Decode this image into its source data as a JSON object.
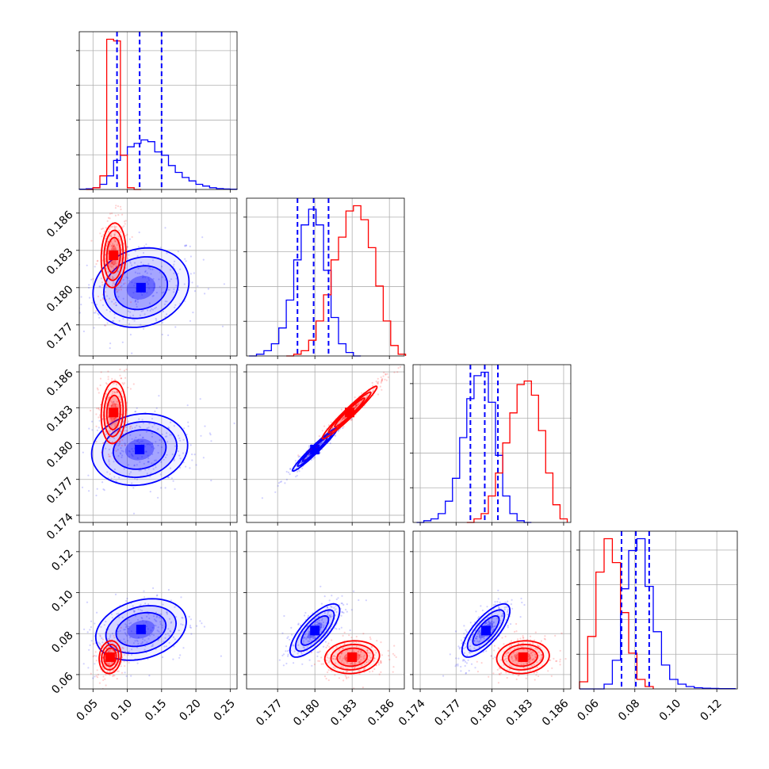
{
  "chart_data": {
    "type": "corner",
    "grid": true,
    "series": [
      {
        "color": "#0000ff"
      },
      {
        "color": "#ff0000"
      }
    ],
    "params": [
      {
        "range": [
          0.03,
          0.26
        ],
        "ticks": [
          "0.05",
          "0.10",
          "0.15",
          "0.20",
          "0.25"
        ],
        "quantiles": [
          0.085,
          0.118,
          0.15
        ],
        "hist": {
          "blue": {
            "x": [
              0.035,
              0.045,
              0.055,
              0.065,
              0.075,
              0.085,
              0.095,
              0.105,
              0.115,
              0.125,
              0.135,
              0.145,
              0.155,
              0.165,
              0.175,
              0.185,
              0.195,
              0.205,
              0.215,
              0.225,
              0.235,
              0.245,
              0.255
            ],
            "y": [
              0.2,
              0.4,
              1,
              3,
              8,
              17,
              20,
              25,
              27,
              29,
              28,
              22,
              20,
              14,
              10,
              7,
              5,
              3,
              2,
              1,
              0.5,
              0.3,
              0.2
            ]
          },
          "red": {
            "x": [
              0.045,
              0.055,
              0.065,
              0.075,
              0.085,
              0.095,
              0.105,
              0.115
            ],
            "y": [
              0,
              1,
              8,
              88,
              87,
              20,
              1,
              0
            ]
          }
        }
      },
      {
        "range": [
          0.1745,
          0.1872
        ],
        "ticks": [
          "0.177",
          "0.180",
          "0.183",
          "0.186"
        ],
        "quantiles": [
          0.1786,
          0.1799,
          0.1811
        ],
        "hist": {
          "blue": {
            "x": [
              0.175,
              0.1756,
              0.1762,
              0.1768,
              0.1774,
              0.178,
              0.1786,
              0.1792,
              0.1798,
              0.1804,
              0.181,
              0.1816,
              0.1822,
              0.1828,
              0.1834
            ],
            "y": [
              0,
              1,
              3,
              7,
              16,
              32,
              55,
              75,
              84,
              75,
              49,
              22,
              7,
              2,
              0
            ]
          },
          "red": {
            "x": [
              0.178,
              0.1786,
              0.1792,
              0.1798,
              0.1804,
              0.181,
              0.1816,
              0.1822,
              0.1828,
              0.1834,
              0.184,
              0.1846,
              0.1852,
              0.1858,
              0.1864,
              0.187
            ],
            "y": [
              0,
              1,
              3,
              9,
              20,
              35,
              55,
              68,
              83,
              86,
              78,
              62,
              40,
              20,
              6,
              1
            ]
          }
        }
      },
      {
        "range": [
          0.1734,
          0.1866
        ],
        "ticks": [
          "0.174",
          "0.177",
          "0.180",
          "0.183",
          "0.186"
        ],
        "quantiles": [
          0.1782,
          0.1794,
          0.1805
        ],
        "hist": {
          "blue": {
            "x": [
              0.174,
              0.1746,
              0.1752,
              0.1758,
              0.1764,
              0.177,
              0.1776,
              0.1782,
              0.1788,
              0.1794,
              0.18,
              0.1806,
              0.1812,
              0.1818,
              0.1824,
              0.183
            ],
            "y": [
              0,
              1,
              2,
              5,
              12,
              25,
              48,
              70,
              83,
              85,
              68,
              38,
              15,
              5,
              1,
              0
            ]
          },
          "red": {
            "x": [
              0.1782,
              0.1788,
              0.1794,
              0.18,
              0.1806,
              0.1812,
              0.1818,
              0.1824,
              0.183,
              0.1836,
              0.1842,
              0.1848,
              0.1854,
              0.186
            ],
            "y": [
              0,
              2,
              5,
              15,
              28,
              45,
              62,
              78,
              80,
              72,
              52,
              28,
              10,
              2
            ]
          }
        }
      },
      {
        "range": [
          0.053,
          0.13
        ],
        "ticks": [
          "0.06",
          "0.08",
          "0.10",
          "0.12"
        ],
        "quantiles": [
          0.0735,
          0.0805,
          0.087
        ],
        "hist": {
          "blue": {
            "x": [
              0.055,
              0.059,
              0.063,
              0.067,
              0.071,
              0.075,
              0.079,
              0.083,
              0.087,
              0.091,
              0.095,
              0.099,
              0.103,
              0.107,
              0.111,
              0.115,
              0.119,
              0.123,
              0.127
            ],
            "y": [
              0,
              0,
              0,
              2,
              12,
              42,
              58,
              63,
              43,
              24,
              10,
              4,
              2,
              1,
              0.5,
              0.3,
              0.2,
              0.1,
              0.1
            ]
          },
          "red": {
            "x": [
              0.055,
              0.059,
              0.063,
              0.067,
              0.071,
              0.075,
              0.079,
              0.083,
              0.087
            ],
            "y": [
              3,
              22,
              49,
              63,
              53,
              32,
              15,
              4,
              1
            ]
          }
        }
      }
    ],
    "contours": {
      "1_0": {
        "blue": {
          "c": [
            0.12,
            0.18
          ],
          "s": [
            0.035,
            0.0016
          ],
          "r": 0.15
        },
        "red": {
          "c": [
            0.08,
            0.1826
          ],
          "s": [
            0.009,
            0.0013
          ],
          "r": 0.1
        }
      },
      "2_0": {
        "blue": {
          "c": [
            0.118,
            0.1795
          ],
          "s": [
            0.035,
            0.0015
          ],
          "r": 0.12
        },
        "red": {
          "c": [
            0.08,
            0.1826
          ],
          "s": [
            0.009,
            0.0013
          ],
          "r": 0.1
        }
      },
      "2_1": {
        "blue": {
          "c": [
            0.18,
            0.1795
          ],
          "s": [
            0.0009,
            0.0009
          ],
          "r": 0.97
        },
        "red": {
          "c": [
            0.1828,
            0.1826
          ],
          "s": [
            0.0011,
            0.0011
          ],
          "r": 0.97
        }
      },
      "3_0": {
        "blue": {
          "c": [
            0.12,
            0.082
          ],
          "s": [
            0.033,
            0.0075
          ],
          "r": 0.25
        },
        "red": {
          "c": [
            0.075,
            0.0685
          ],
          "s": [
            0.008,
            0.004
          ],
          "r": 0.1
        }
      },
      "3_1": {
        "blue": {
          "c": [
            0.18,
            0.0815
          ],
          "s": [
            0.001,
            0.0065
          ],
          "r": 0.75
        },
        "red": {
          "c": [
            0.183,
            0.0685
          ],
          "s": [
            0.0011,
            0.004
          ],
          "r": 0.1
        }
      },
      "3_2": {
        "blue": {
          "c": [
            0.1795,
            0.0815
          ],
          "s": [
            0.001,
            0.0065
          ],
          "r": 0.75
        },
        "red": {
          "c": [
            0.1826,
            0.0685
          ],
          "s": [
            0.0011,
            0.004
          ],
          "r": 0.1
        }
      }
    }
  }
}
